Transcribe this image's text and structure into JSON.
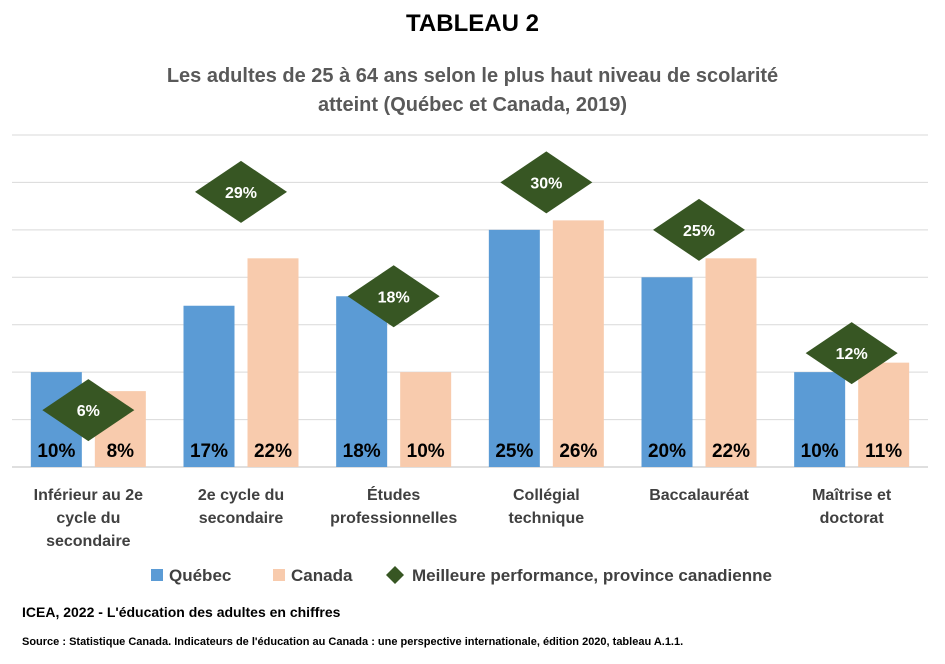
{
  "header": {
    "tableau": "TABLEAU 2",
    "title_line1": "Les adultes de 25 à 64 ans selon le plus haut niveau de scolarité",
    "title_line2": "atteint (Québec et Canada, 2019)"
  },
  "chart_data": {
    "type": "bar",
    "categories": [
      [
        "Inférieur au 2e",
        "cycle du",
        "secondaire"
      ],
      [
        "2e cycle du",
        "secondaire"
      ],
      [
        "Études",
        "professionnelles"
      ],
      [
        "Collégial",
        "technique"
      ],
      [
        "Baccalauréat"
      ],
      [
        "Maîtrise et",
        "doctorat"
      ]
    ],
    "series": [
      {
        "name": "Québec",
        "values": [
          10,
          17,
          18,
          25,
          20,
          10
        ],
        "labels": [
          "10%",
          "17%",
          "18%",
          "25%",
          "20%",
          "10%"
        ]
      },
      {
        "name": "Canada",
        "values": [
          8,
          22,
          10,
          26,
          22,
          11
        ],
        "labels": [
          "8%",
          "22%",
          "10%",
          "26%",
          "22%",
          "11%"
        ]
      }
    ],
    "best_province": {
      "name": "Meilleure performance, province canadienne",
      "values": [
        6,
        29,
        18,
        30,
        25,
        12
      ],
      "labels": [
        "6%",
        "29%",
        "18%",
        "30%",
        "25%",
        "12%"
      ]
    },
    "ylim": [
      0,
      35
    ],
    "gridlines": true,
    "y_axis_labels": false,
    "legend_position": "bottom",
    "colors": {
      "quebec": "#5b9bd5",
      "canada": "#f8cbad",
      "best": "#375623",
      "grid": "#d9d9d9",
      "axis": "#bfbfbf"
    }
  },
  "footer": {
    "brand": "ICEA, 2022 - L'éducation des adultes en chiffres",
    "source": "Source : Statistique Canada.  Indicateurs de l'éducation au Canada : une perspective internationale,  édition 2020, tableau A.1.1."
  }
}
